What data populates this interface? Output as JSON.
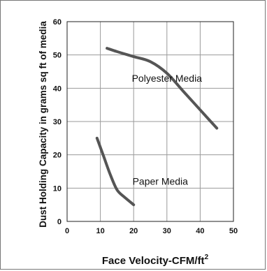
{
  "chart_data": {
    "type": "line",
    "title": "",
    "xlabel": "Face Velocity-CFM/ft",
    "xlabel_superscript": "2",
    "ylabel": "Dust Holding Capacity in grams sq ft of media",
    "xlim": [
      0,
      50
    ],
    "ylim": [
      0,
      60
    ],
    "x_ticks": [
      "0",
      "10",
      "20",
      "30",
      "40",
      "50"
    ],
    "y_ticks": [
      "0",
      "10",
      "20",
      "30",
      "40",
      "50",
      "60"
    ],
    "grid": true,
    "legend": "none",
    "line_color": "#555555",
    "series": [
      {
        "name": "Polyester Media",
        "x": [
          12,
          15,
          20,
          25,
          30,
          35,
          40,
          45
        ],
        "y": [
          52,
          51,
          49.5,
          48,
          44.5,
          39,
          33.5,
          28
        ]
      },
      {
        "name": "Paper Media",
        "x": [
          9,
          11,
          13,
          15,
          17,
          20
        ],
        "y": [
          25,
          19.5,
          14,
          9.5,
          7.5,
          5
        ]
      }
    ],
    "annotations": [
      {
        "text": "Polyester Media",
        "x": 30,
        "y": 42
      },
      {
        "text": "Paper Media",
        "x": 28,
        "y": 11
      }
    ]
  }
}
